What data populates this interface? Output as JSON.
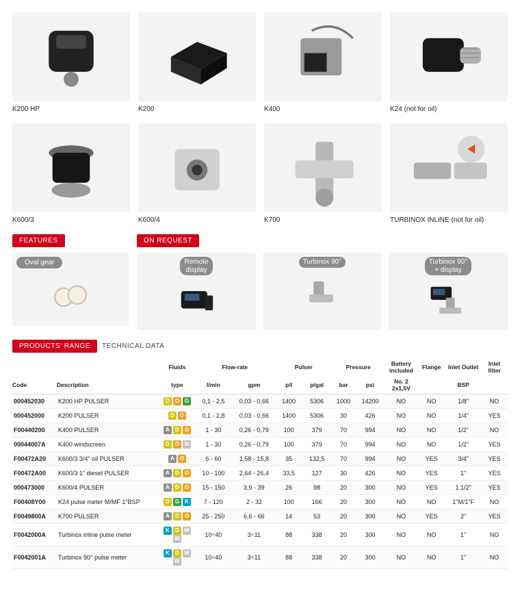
{
  "products": [
    {
      "label": "K200 HP",
      "svg": "meter1"
    },
    {
      "label": "K200",
      "svg": "block"
    },
    {
      "label": "K400",
      "svg": "box"
    },
    {
      "label": "K24 (not for oil)",
      "svg": "turbine"
    },
    {
      "label": "K600/3",
      "svg": "meter2"
    },
    {
      "label": "K600/4",
      "svg": "flange"
    },
    {
      "label": "K700",
      "svg": "cross"
    },
    {
      "label": "TURBINOX INLINE (not for oil)",
      "svg": "inline"
    }
  ],
  "badges": {
    "features": "FEATURES",
    "onrequest": "ON REQUEST",
    "products_range": "PRODUCTS' RANGE",
    "technical_data": "TECHNICAL DATA"
  },
  "feature": {
    "chip": "Oval gear",
    "svg": "gears"
  },
  "onrequest": [
    {
      "chip": "Remote\ndisplay",
      "svg": "remote"
    },
    {
      "chip": "Turbinox 90°",
      "svg": "t90"
    },
    {
      "chip": "Turbinox 90°\n+ display",
      "svg": "t90d"
    }
  ],
  "fluid_colors": {
    "A": "#8e8e8e",
    "D": "#d4c417",
    "G": "#3aa03a",
    "K": "#00a0d0",
    "O": "#f0a020",
    "W": "#c0c0c0"
  },
  "table": {
    "groups": [
      {
        "label": "",
        "span": 2
      },
      {
        "label": "Fluids",
        "span": 1
      },
      {
        "label": "Flow-rate",
        "span": 2
      },
      {
        "label": "Pulser",
        "span": 2
      },
      {
        "label": "Pressure",
        "span": 2
      },
      {
        "label": "Battery included",
        "span": 1
      },
      {
        "label": "Flange",
        "span": 1
      },
      {
        "label": "Inlet Outlet",
        "span": 1
      },
      {
        "label": "Inlet filter",
        "span": 1
      }
    ],
    "sub": [
      "Code",
      "Description",
      "type",
      "l/min",
      "gpm",
      "p/l",
      "p/gal",
      "bar",
      "psi",
      "No. 2 2x1,5V",
      "",
      "BSP",
      ""
    ],
    "col_widths": [
      "60px",
      "140px",
      "46px",
      "52px",
      "58px",
      "36px",
      "40px",
      "32px",
      "40px",
      "44px",
      "38px",
      "48px",
      "36px"
    ],
    "rows": [
      {
        "code": "000452030",
        "desc": "K200 HP PULSER",
        "fluids": [
          "D",
          "O",
          "G"
        ],
        "lmin": "0,1 - 2,5",
        "gpm": "0,03 - 0,66",
        "pl": "1400",
        "pgal": "5306",
        "bar": "1000",
        "psi": "14200",
        "bat": "NO",
        "flange": "NO",
        "io": "1/8\"",
        "filter": "NO"
      },
      {
        "code": "000452000",
        "desc": "K200 PULSER",
        "fluids": [
          "D",
          "O"
        ],
        "lmin": "0,1 - 2,8",
        "gpm": "0,03 - 0,66",
        "pl": "1400",
        "pgal": "5306",
        "bar": "30",
        "psi": "426",
        "bat": "NO",
        "flange": "NO",
        "io": "1/4\"",
        "filter": "YES"
      },
      {
        "code": "F00440200",
        "desc": "K400 PULSER",
        "fluids": [
          "A",
          "D",
          "O"
        ],
        "lmin": "1 - 30",
        "gpm": "0,26 - 0,79",
        "pl": "100",
        "pgal": "379",
        "bar": "70",
        "psi": "994",
        "bat": "NO",
        "flange": "NO",
        "io": "1/2\"",
        "filter": "NO"
      },
      {
        "code": "00044007A",
        "desc": "K400 windscreen",
        "fluids": [
          "D",
          "O",
          "W"
        ],
        "lmin": "1 - 30",
        "gpm": "0,26 - 0,79",
        "pl": "100",
        "pgal": "379",
        "bar": "70",
        "psi": "994",
        "bat": "NO",
        "flange": "NO",
        "io": "1/2\"",
        "filter": "YES"
      },
      {
        "code": "F00472A20",
        "desc": "K600/3 3/4\" oil PULSER",
        "fluids": [
          "A",
          "O"
        ],
        "lmin": "6 - 60",
        "gpm": "1,58 - 15,8",
        "pl": "35",
        "pgal": "132,5",
        "bar": "70",
        "psi": "994",
        "bat": "NO",
        "flange": "YES",
        "io": "3/4\"",
        "filter": "YES"
      },
      {
        "code": "F00472A00",
        "desc": "K600/3 1\" diesel PULSER",
        "fluids": [
          "A",
          "D",
          "O"
        ],
        "lmin": "10 - 100",
        "gpm": "2,64 - 26,4",
        "pl": "33,5",
        "pgal": "127",
        "bar": "30",
        "psi": "426",
        "bat": "NO",
        "flange": "YES",
        "io": "1\"",
        "filter": "YES"
      },
      {
        "code": "000473000",
        "desc": "K600/4 PULSER",
        "fluids": [
          "A",
          "D",
          "O"
        ],
        "lmin": "15 - 150",
        "gpm": "3,9 - 39",
        "pl": "26",
        "pgal": "98",
        "bar": "20",
        "psi": "300",
        "bat": "NO",
        "flange": "YES",
        "io": "1 1/2\"",
        "filter": "YES"
      },
      {
        "code": "F00408Y00",
        "desc": "K24 pulse meter M/MF 1\"BSP",
        "fluids": [
          "D",
          "G",
          "K"
        ],
        "lmin": "7 - 120",
        "gpm": "2 - 32",
        "pl": "100",
        "pgal": "166",
        "bar": "20",
        "psi": "300",
        "bat": "NO",
        "flange": "NO",
        "io": "1\"M/1\"F",
        "filter": "NO"
      },
      {
        "code": "F0049800A",
        "desc": "K700 PULSER",
        "fluids": [
          "A",
          "D",
          "O"
        ],
        "lmin": "25 - 250",
        "gpm": "6,6 - 66",
        "pl": "14",
        "pgal": "53",
        "bar": "20",
        "psi": "300",
        "bat": "NO",
        "flange": "YES",
        "io": "2\"",
        "filter": "YES"
      },
      {
        "code": "F0042000A",
        "desc": "Turbinox inline pulse meter",
        "fluids": [
          "K",
          "D",
          "W",
          "W"
        ],
        "lmin": "10÷40",
        "gpm": "3÷11",
        "pl": "88",
        "pgal": "338",
        "bar": "20",
        "psi": "300",
        "bat": "NO",
        "flange": "NO",
        "io": "1\"",
        "filter": "NO"
      },
      {
        "code": "F0042001A",
        "desc": "Turbinox 90° pulse meter",
        "fluids": [
          "K",
          "D",
          "W",
          "W"
        ],
        "lmin": "10÷40",
        "gpm": "3÷11",
        "pl": "88",
        "pgal": "338",
        "bar": "20",
        "psi": "300",
        "bat": "NO",
        "flange": "NO",
        "io": "1\"",
        "filter": "NO"
      }
    ]
  },
  "colors": {
    "red": "#d0021b",
    "grey_bg": "#f3f3f3",
    "grey_chip": "#8c8c8c"
  }
}
